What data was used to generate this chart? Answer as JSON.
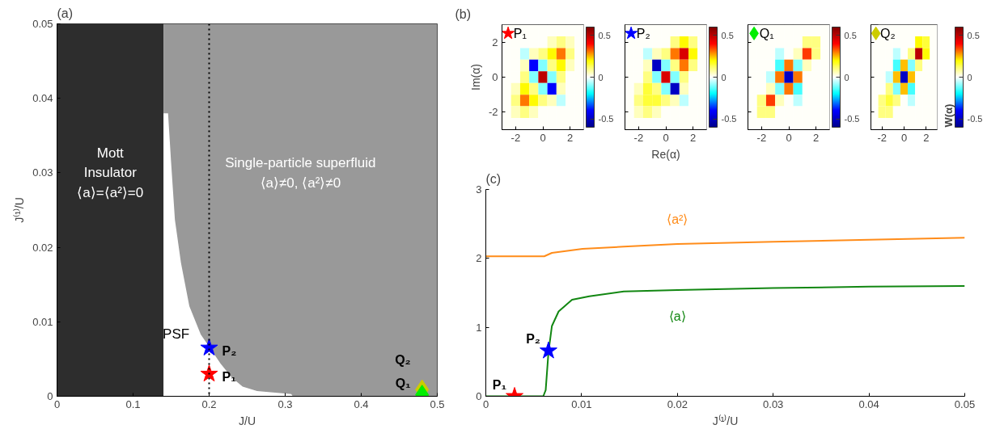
{
  "chart_data": [
    {
      "type": "area",
      "title": "(a)",
      "xlabel": "J/U",
      "ylabel": "J⁽¹⁾/U",
      "xlim": [
        0,
        0.5
      ],
      "ylim": [
        0,
        0.05
      ],
      "xticks": [
        0,
        0.1,
        0.2,
        0.3,
        0.4,
        0.5
      ],
      "yticks": [
        0,
        0.01,
        0.02,
        0.03,
        0.04,
        0.05
      ],
      "grid": false,
      "bands": [
        {
          "axis": "x",
          "from": 0,
          "to": 0.14,
          "color": "#2d2d2d",
          "label": "Mott\nInsulator\n⟨a⟩=⟨a²⟩=0"
        },
        {
          "axis": "x",
          "from": 0.14,
          "to": 0.5,
          "color": "#999999",
          "label": "Single-particle superfluid\n⟨a⟩≠0, ⟨a²⟩≠0"
        }
      ],
      "series": [
        {
          "type": "area",
          "name": "PSF",
          "color": "#ffffff",
          "x": [
            0.14,
            0.146,
            0.15,
            0.155,
            0.163,
            0.174,
            0.189,
            0.215,
            0.23,
            0.244,
            0.263,
            0.308,
            0.31,
            0.5
          ],
          "values": [
            0.038,
            0.038,
            0.0314,
            0.0237,
            0.0179,
            0.0121,
            0.0083,
            0.0044,
            0.0025,
            0.0013,
            0.0007,
            0.0003,
            0,
            0
          ]
        },
        {
          "type": "scatter",
          "name": "P₁",
          "marker": "star",
          "color": "#ff0000",
          "x": [
            0.2
          ],
          "values": [
            0.003
          ]
        },
        {
          "type": "scatter",
          "name": "P₂",
          "marker": "star",
          "color": "#0000ff",
          "x": [
            0.2
          ],
          "values": [
            0.0065
          ]
        },
        {
          "type": "scatter",
          "name": "Q₂",
          "marker": "diamond",
          "color": "#cccc00",
          "x": [
            0.48
          ],
          "values": [
            0.0009
          ]
        },
        {
          "type": "scatter",
          "name": "Q₁",
          "marker": "diamond",
          "color": "#00ee00",
          "x": [
            0.48
          ],
          "values": [
            0.0002
          ]
        }
      ],
      "ref_lines": [
        {
          "axis": "x",
          "value": 0.2,
          "color": "#000000",
          "line_style": "dotted"
        }
      ]
    },
    {
      "type": "heatmap",
      "title": "P₁",
      "marker": "star",
      "color": "#ff0000",
      "annotations": [
        "(b)"
      ],
      "ylabel": "Im(α)",
      "xlim": [
        -3,
        3
      ],
      "ylim": [
        -3,
        3
      ],
      "xticks": [
        -2,
        0,
        2
      ],
      "yticks": [
        -2,
        0,
        2
      ],
      "clim": [
        -0.6,
        0.6
      ],
      "cticks": [
        -0.5,
        0,
        0.5
      ],
      "x": [
        -2.667,
        -2,
        -1.333,
        -0.667,
        0,
        0.667,
        1.333,
        2,
        2.667
      ],
      "y": [
        2.667,
        2,
        1.333,
        0.667,
        0,
        -0.667,
        -1.333,
        -2,
        -2.667
      ],
      "cells": [
        [
          0,
          0,
          0,
          0,
          0,
          0,
          0,
          0,
          0
        ],
        [
          0,
          0,
          0,
          0,
          0,
          0.05,
          0.1,
          0.05,
          0
        ],
        [
          0,
          0,
          -0.05,
          0.05,
          0.1,
          0.2,
          0.3,
          0.1,
          0
        ],
        [
          0,
          0,
          0.05,
          -0.4,
          -0.1,
          0.1,
          0.2,
          0.05,
          0
        ],
        [
          0,
          0,
          0.1,
          -0.1,
          0.5,
          -0.1,
          0.1,
          0,
          0
        ],
        [
          0,
          0.05,
          0.2,
          0.1,
          -0.1,
          -0.4,
          0.05,
          0,
          0
        ],
        [
          0,
          0.1,
          0.3,
          0.2,
          0.1,
          0.05,
          -0.05,
          0,
          0
        ],
        [
          0,
          0.05,
          0.1,
          0.05,
          0,
          0,
          0,
          0,
          0
        ],
        [
          0,
          0,
          0,
          0,
          0,
          0,
          0,
          0,
          0
        ]
      ]
    },
    {
      "type": "heatmap",
      "title": "P₂",
      "marker": "star",
      "color": "#0000ff",
      "xlabel": "Re(α)",
      "tick_labels": "x",
      "xlim": [
        -3,
        3
      ],
      "ylim": [
        -3,
        3
      ],
      "xticks": [
        -2,
        0,
        2
      ],
      "yticks": [
        -2,
        0,
        2
      ],
      "clim": [
        -0.6,
        0.6
      ],
      "cticks": [
        -0.5,
        0,
        0.5
      ],
      "x": [
        -2.667,
        -2,
        -1.333,
        -0.667,
        0,
        0.667,
        1.333,
        2,
        2.667
      ],
      "y": [
        2.667,
        2,
        1.333,
        0.667,
        0,
        -0.667,
        -1.333,
        -2,
        -2.667
      ],
      "cells": [
        [
          0,
          0,
          0,
          0,
          0,
          0,
          0,
          0,
          0
        ],
        [
          0,
          0,
          0,
          0,
          0,
          0.1,
          0.2,
          0.1,
          0
        ],
        [
          0,
          0,
          -0.05,
          0.05,
          0.1,
          0.3,
          0.45,
          0.2,
          0
        ],
        [
          0,
          0,
          0.05,
          -0.5,
          -0.1,
          0.1,
          0.3,
          0.1,
          0
        ],
        [
          0,
          0,
          0.1,
          -0.1,
          0.45,
          -0.1,
          0.1,
          0,
          0
        ],
        [
          0,
          0.05,
          0.15,
          0.1,
          -0.1,
          -0.5,
          0.05,
          0,
          0
        ],
        [
          0,
          0.1,
          0.15,
          0.15,
          0.1,
          0.05,
          -0.05,
          0,
          0
        ],
        [
          0,
          0.05,
          0.1,
          0.05,
          0,
          0,
          0,
          0,
          0
        ],
        [
          0,
          0,
          0,
          0,
          0,
          0,
          0,
          0,
          0
        ]
      ]
    },
    {
      "type": "heatmap",
      "title": "Q₁",
      "marker": "diamond",
      "color": "#00ee00",
      "tick_labels": "x",
      "xlim": [
        -3,
        3
      ],
      "ylim": [
        -3,
        3
      ],
      "xticks": [
        -2,
        0,
        2
      ],
      "yticks": [
        -2,
        0,
        2
      ],
      "clim": [
        -0.6,
        0.6
      ],
      "cticks": [
        -0.5,
        0,
        0.5
      ],
      "x": [
        -2.667,
        -2,
        -1.333,
        -0.667,
        0,
        0.667,
        1.333,
        2,
        2.667
      ],
      "y": [
        2.667,
        2,
        1.333,
        0.667,
        0,
        -0.667,
        -1.333,
        -2,
        -2.667
      ],
      "cells": [
        [
          null,
          0,
          0,
          0,
          0,
          0,
          0,
          0,
          0
        ],
        [
          0,
          0,
          0,
          0,
          0,
          0,
          0.1,
          0.1,
          0
        ],
        [
          0,
          0,
          0,
          -0.05,
          0,
          0.05,
          0.35,
          0.1,
          0
        ],
        [
          0,
          0,
          0,
          -0.15,
          0.3,
          -0.1,
          0.05,
          0,
          0
        ],
        [
          0,
          0,
          -0.05,
          0.3,
          -0.5,
          0.3,
          0,
          0,
          0
        ],
        [
          0,
          0,
          0.05,
          -0.1,
          0.3,
          -0.15,
          0,
          0,
          0
        ],
        [
          0,
          0.1,
          0.35,
          0.05,
          0,
          -0.05,
          0,
          0,
          0
        ],
        [
          0,
          0.1,
          0.1,
          0,
          0,
          0,
          0,
          0,
          0
        ],
        [
          0,
          0,
          0,
          0,
          0,
          0,
          0,
          0,
          0
        ]
      ]
    },
    {
      "type": "heatmap",
      "title": "Q₂",
      "marker": "diamond",
      "color": "#cccc00",
      "tick_labels": "x",
      "clabel": "W(α)",
      "xlim": [
        -3,
        3
      ],
      "ylim": [
        -3,
        3
      ],
      "xticks": [
        -2,
        0,
        2
      ],
      "yticks": [
        -2,
        0,
        2
      ],
      "clim": [
        -0.6,
        0.6
      ],
      "cticks": [
        -0.5,
        0,
        0.5
      ],
      "x": [
        -2.667,
        -2,
        -1.333,
        -0.667,
        0,
        0.667,
        1.333,
        2,
        2.667
      ],
      "y": [
        2.667,
        2,
        1.333,
        0.667,
        0,
        -0.667,
        -1.333,
        -2,
        -2.667
      ],
      "cells": [
        [
          null,
          0,
          0,
          0,
          0,
          0,
          0,
          0,
          0
        ],
        [
          0,
          0,
          0,
          0,
          0,
          0,
          0.2,
          0.15,
          0
        ],
        [
          0,
          0,
          0,
          -0.05,
          0,
          0.1,
          0.5,
          0.2,
          0
        ],
        [
          0,
          0,
          0,
          -0.15,
          0.25,
          -0.1,
          0.1,
          0,
          0
        ],
        [
          0,
          0,
          -0.05,
          0.25,
          -0.5,
          0.25,
          0,
          0,
          0
        ],
        [
          0,
          0,
          0.1,
          -0.1,
          0.25,
          -0.15,
          0,
          0,
          0
        ],
        [
          0,
          0.1,
          0.15,
          0.1,
          0,
          -0.05,
          0,
          0,
          0
        ],
        [
          0,
          0.1,
          0.1,
          0,
          0,
          0,
          0,
          0,
          0
        ],
        [
          0,
          0,
          0,
          0,
          0,
          0,
          0,
          0,
          0
        ]
      ]
    },
    {
      "type": "line",
      "title": "(c)",
      "xlabel": "J⁽¹⁾/U",
      "xlim": [
        0,
        0.05
      ],
      "ylim": [
        0,
        3
      ],
      "xticks": [
        0,
        0.01,
        0.02,
        0.03,
        0.04,
        0.05
      ],
      "yticks": [
        0,
        1,
        2,
        3
      ],
      "grid": false,
      "series": [
        {
          "type": "line",
          "name": "⟨a²⟩",
          "color": "#ff8c1a",
          "x": [
            0,
            0.0061,
            0.0069,
            0.0101,
            0.0144,
            0.02,
            0.03,
            0.04,
            0.05
          ],
          "values": [
            2.03,
            2.03,
            2.08,
            2.14,
            2.17,
            2.21,
            2.24,
            2.27,
            2.3
          ]
        },
        {
          "type": "line",
          "name": "⟨a⟩",
          "color": "#128712",
          "x": [
            0,
            0.006,
            0.00625,
            0.00654,
            0.0069,
            0.0076,
            0.009,
            0.0108,
            0.0144,
            0.02,
            0.03,
            0.04,
            0.05
          ],
          "values": [
            0,
            0,
            0.09,
            0.64,
            1.02,
            1.23,
            1.4,
            1.45,
            1.52,
            1.54,
            1.57,
            1.59,
            1.6
          ]
        },
        {
          "type": "scatter",
          "name": "P₁",
          "marker": "star",
          "color": "#ff0000",
          "x": [
            0.003
          ],
          "values": [
            0
          ]
        },
        {
          "type": "scatter",
          "name": "P₂",
          "marker": "star",
          "color": "#0000ff",
          "x": [
            0.00654
          ],
          "values": [
            0.66
          ]
        }
      ]
    }
  ]
}
